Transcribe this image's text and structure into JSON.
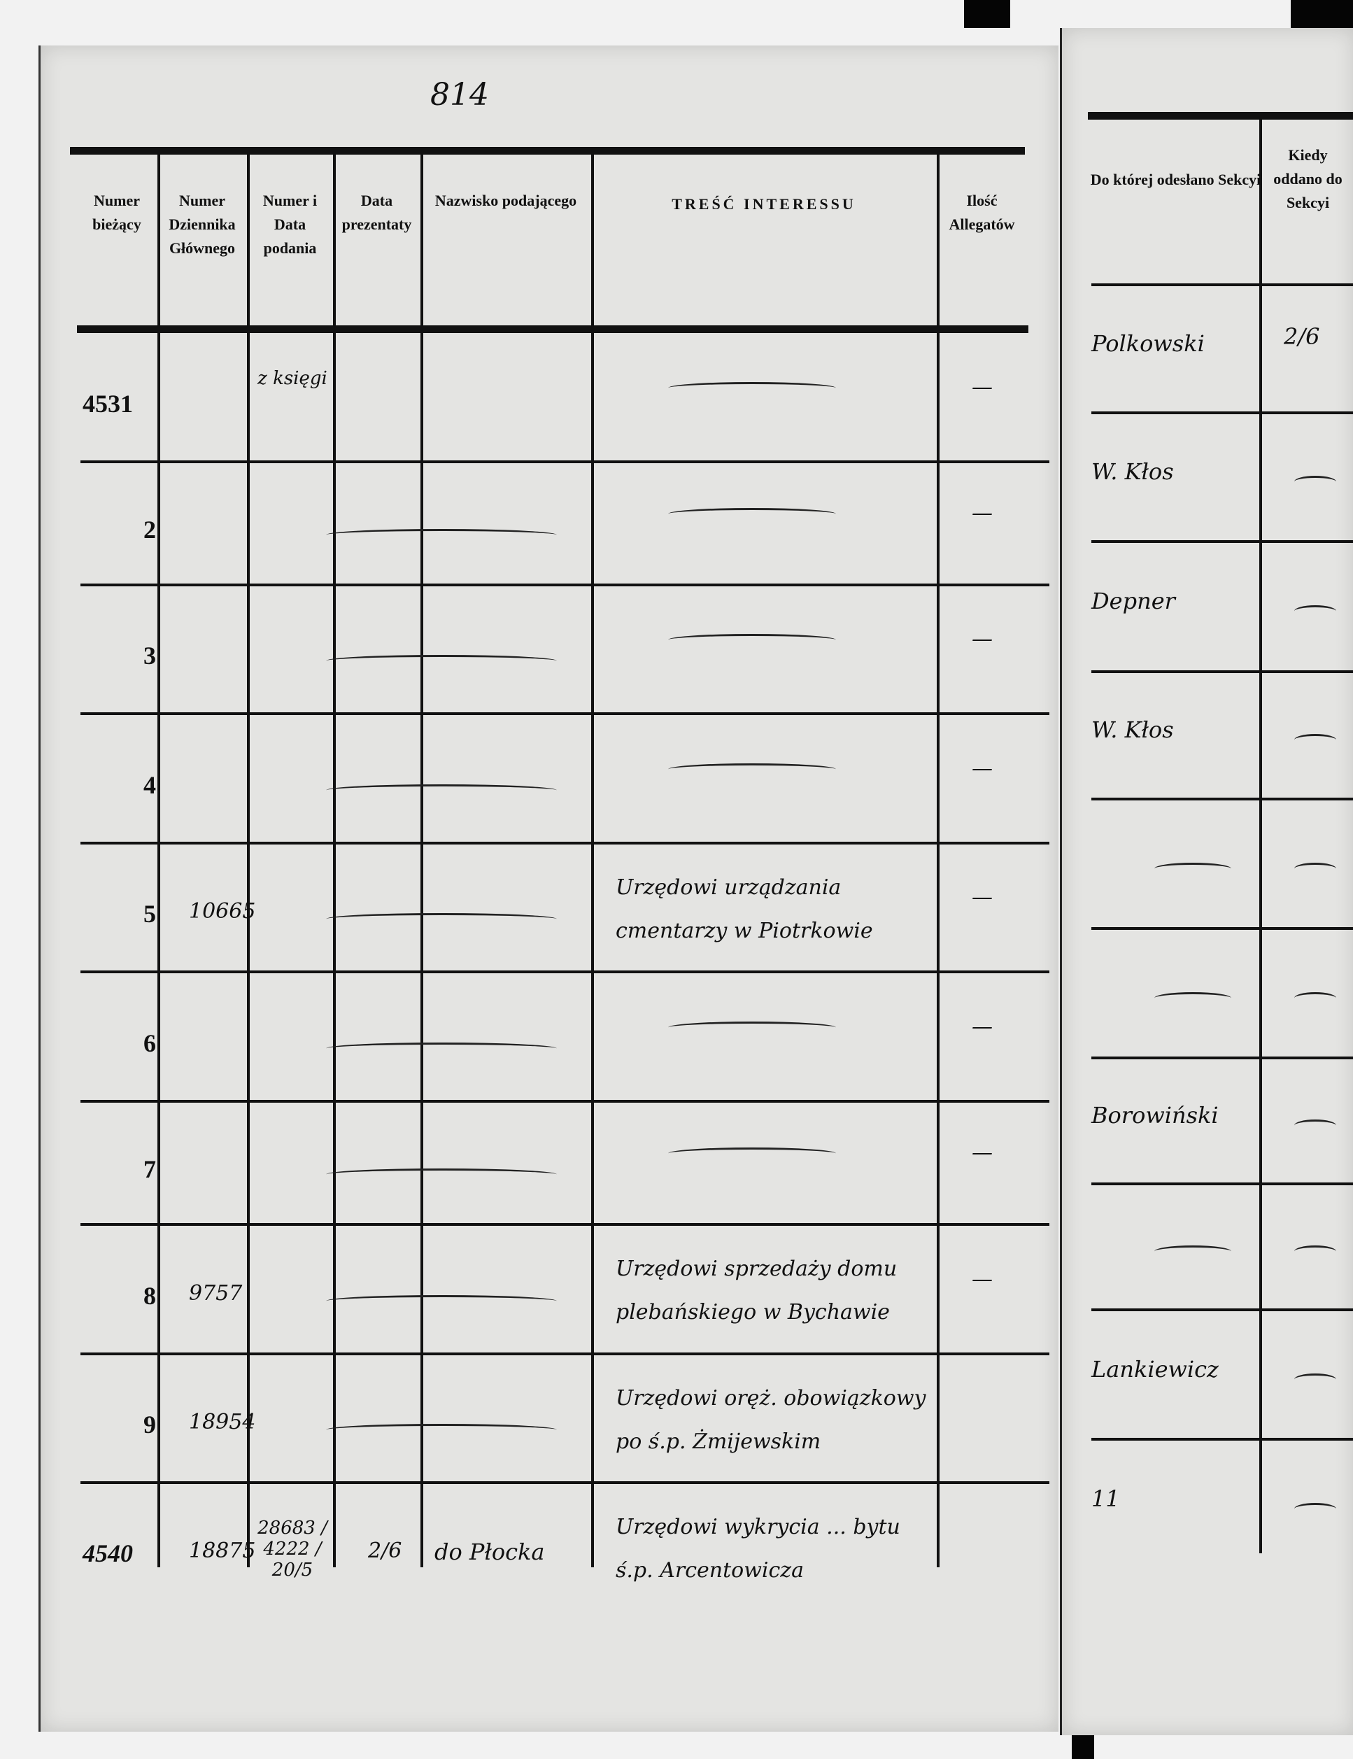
{
  "page_mark": "814",
  "left_page": {
    "headers": [
      "Numer bieżący",
      "Numer Dziennika Głównego",
      "Numer i Data podania",
      "Data prezentaty",
      "Nazwisko podającego",
      "TREŚĆ INTERESSU",
      "Ilość Allegatów"
    ]
  },
  "right_page": {
    "headers": [
      "Do której odesłano Sekcyi",
      "Kiedy oddano do Sekcyi"
    ]
  },
  "rows": [
    {
      "numer": "4531",
      "dziennik": "",
      "podanie": "z księgi",
      "data": "",
      "nazwisko": "",
      "tresc": "",
      "allegaty": "—",
      "sekcja": "Polkowski",
      "kiedy": "2/6"
    },
    {
      "numer": "2",
      "dziennik": "",
      "podanie": "",
      "data": "",
      "nazwisko": "",
      "tresc": "",
      "allegaty": "—",
      "sekcja": "W. Kłos",
      "kiedy": ""
    },
    {
      "numer": "3",
      "dziennik": "",
      "podanie": "",
      "data": "",
      "nazwisko": "",
      "tresc": "",
      "allegaty": "—",
      "sekcja": "Depner",
      "kiedy": ""
    },
    {
      "numer": "4",
      "dziennik": "",
      "podanie": "",
      "data": "",
      "nazwisko": "",
      "tresc": "",
      "allegaty": "—",
      "sekcja": "W. Kłos",
      "kiedy": ""
    },
    {
      "numer": "5",
      "dziennik": "10665",
      "podanie": "",
      "data": "",
      "nazwisko": "",
      "tresc": "Urzędowi urządzania cmentarzy w Piotrkowie",
      "allegaty": "—",
      "sekcja": "",
      "kiedy": ""
    },
    {
      "numer": "6",
      "dziennik": "",
      "podanie": "",
      "data": "",
      "nazwisko": "",
      "tresc": "",
      "allegaty": "—",
      "sekcja": "",
      "kiedy": ""
    },
    {
      "numer": "7",
      "dziennik": "",
      "podanie": "",
      "data": "",
      "nazwisko": "",
      "tresc": "",
      "allegaty": "—",
      "sekcja": "Borowiński",
      "kiedy": ""
    },
    {
      "numer": "8",
      "dziennik": "9757",
      "podanie": "",
      "data": "",
      "nazwisko": "",
      "tresc": "Urzędowi sprzedaży domu plebańskiego w Bychawie",
      "allegaty": "—",
      "sekcja": "",
      "kiedy": ""
    },
    {
      "numer": "9",
      "dziennik": "18954",
      "podanie": "",
      "data": "",
      "nazwisko": "",
      "tresc": "Urzędowi oręż. obowiązkowy po ś.p. Żmijewskim",
      "allegaty": "",
      "sekcja": "Lankiewicz",
      "kiedy": ""
    },
    {
      "numer": "4540",
      "dziennik": "18875",
      "podanie": "28683 / 4222 / 20/5",
      "data": "2/6",
      "nazwisko": "do Płocka",
      "tresc": "Urzędowi wykrycia ... bytu ś.p. Arcentowicza",
      "allegaty": "",
      "sekcja": "11",
      "kiedy": ""
    }
  ]
}
